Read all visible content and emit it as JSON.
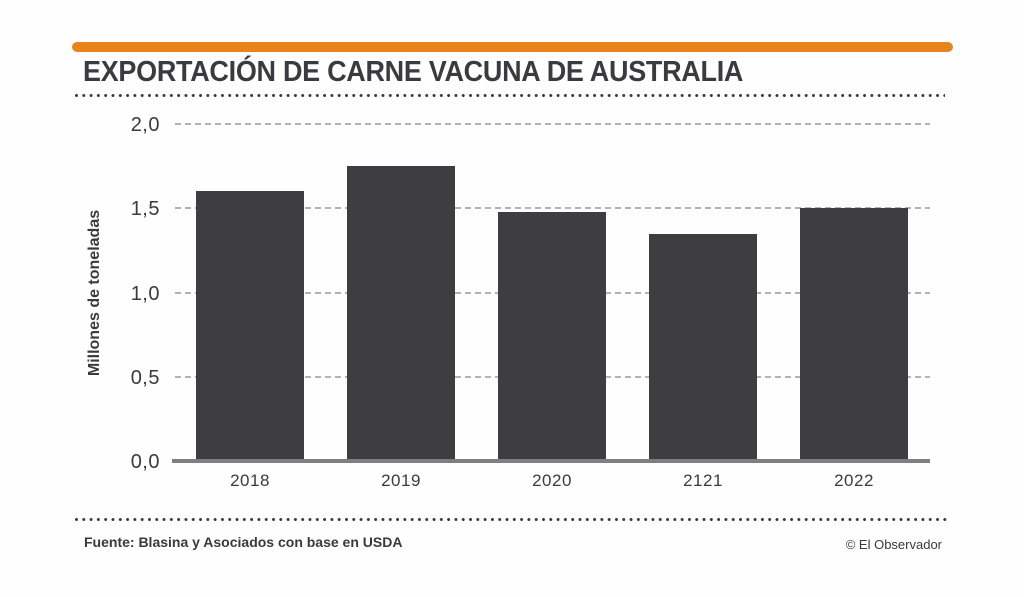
{
  "header": {
    "accent_color": "#E8831D",
    "title": "EXPORTACIÓN DE CARNE VACUNA DE AUSTRALIA"
  },
  "chart_data": {
    "type": "bar",
    "title": "EXPORTACIÓN DE CARNE VACUNA DE AUSTRALIA",
    "categories": [
      "2018",
      "2019",
      "2020",
      "2121",
      "2022"
    ],
    "values": [
      1.6,
      1.75,
      1.48,
      1.35,
      1.5
    ],
    "xlabel": "",
    "ylabel": "Millones de toneladas",
    "ylim": [
      0,
      2.0
    ],
    "yticks": [
      {
        "value": 0.0,
        "label": "0,0"
      },
      {
        "value": 0.5,
        "label": "0,5"
      },
      {
        "value": 1.0,
        "label": "1,0"
      },
      {
        "value": 1.5,
        "label": "1,5"
      },
      {
        "value": 2.0,
        "label": "2,0"
      }
    ],
    "grid": "horizontal-dashed",
    "legend_position": "none",
    "bar_color": "#3E3E42",
    "gridline_color": "#B3B3B3",
    "axis_color": "#7F7F7F"
  },
  "footer": {
    "source": "Fuente: Blasina y Asociados con base en USDA",
    "credit": "© El Observador"
  }
}
